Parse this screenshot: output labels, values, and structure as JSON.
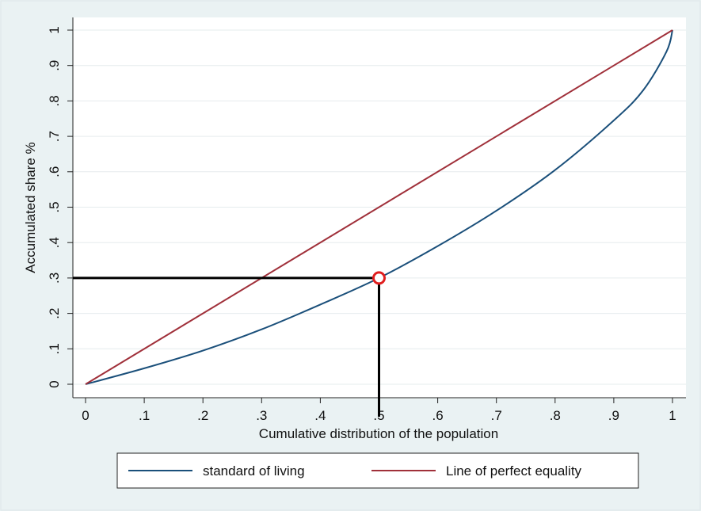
{
  "chart_data": {
    "type": "line",
    "xlabel": "Cumulative distribution of the population",
    "ylabel": "Accumulated share %",
    "xlim": [
      0,
      1
    ],
    "ylim": [
      0,
      1
    ],
    "grid": true,
    "legend_position": "bottom",
    "x_ticks": [
      "0",
      ".1",
      ".2",
      ".3",
      ".4",
      ".5",
      ".6",
      ".7",
      ".8",
      ".9",
      "1"
    ],
    "y_ticks": [
      "0",
      ".1",
      ".2",
      ".3",
      ".4",
      ".5",
      ".6",
      ".7",
      ".8",
      ".9",
      "1"
    ],
    "series": [
      {
        "name": "standard of living",
        "color": "#1a4f7a",
        "x": [
          0,
          0.1,
          0.2,
          0.3,
          0.4,
          0.5,
          0.6,
          0.7,
          0.8,
          0.9,
          0.95,
          0.99,
          1.0
        ],
        "y": [
          0,
          0.045,
          0.095,
          0.155,
          0.225,
          0.3,
          0.39,
          0.49,
          0.605,
          0.745,
          0.83,
          0.94,
          1.0
        ]
      },
      {
        "name": "Line of perfect equality",
        "color": "#a0303a",
        "x": [
          0,
          1
        ],
        "y": [
          0,
          1
        ]
      }
    ],
    "annotations": {
      "marker": {
        "x": 0.5,
        "y": 0.3,
        "color": "#e01e1e"
      },
      "guide_color": "#000000"
    }
  }
}
